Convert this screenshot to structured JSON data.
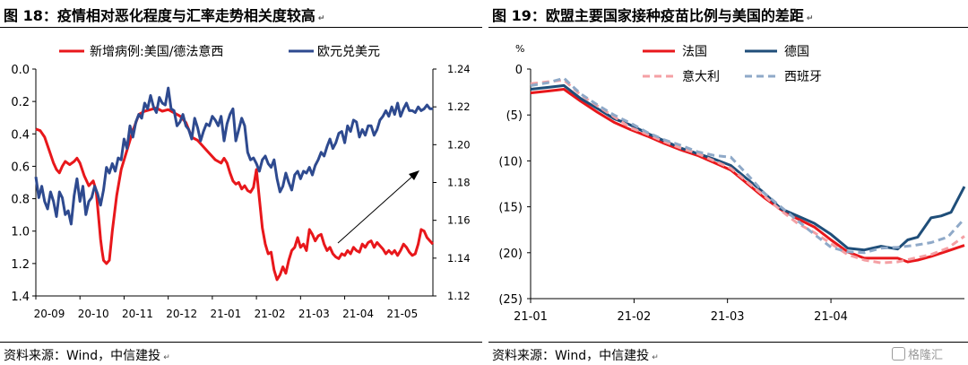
{
  "left_panel": {
    "title": "图 18：疫情相对恶化程度与汇率走势相关度较高",
    "source": "资料来源：Wind，中信建投"
  },
  "right_panel": {
    "title": "图 19：欧盟主要国家接种疫苗比例与美国的差距",
    "source": "资料来源：Wind，中信建投"
  },
  "colors": {
    "red": "#e8171b",
    "blue": "#2e4a8f",
    "darkblue": "#1f4e79",
    "pink": "#f4a0a4",
    "lightblue": "#8fa9c8"
  },
  "chart_data": [
    {
      "type": "line",
      "title": "图 18：疫情相对恶化程度与汇率走势相关度较高",
      "x_tick_labels": [
        "20-09",
        "20-10",
        "20-11",
        "20-12",
        "21-01",
        "21-02",
        "21-03",
        "21-04",
        "21-05"
      ],
      "y_left": {
        "ticks": [
          "0.0",
          "0.2",
          "0.4",
          "0.6",
          "0.8",
          "1.0",
          "1.2",
          "1.4"
        ],
        "range": [
          0.0,
          1.4
        ],
        "inverted": true
      },
      "y_right": {
        "ticks": [
          "1.12",
          "1.14",
          "1.16",
          "1.18",
          "1.20",
          "1.22",
          "1.24"
        ],
        "range": [
          1.12,
          1.24
        ]
      },
      "legend_placement": "top",
      "annotation": "upward arrow",
      "series": [
        {
          "name": "新增病例:美国/德法意西",
          "axis": "left",
          "color": "#e8171b",
          "x": [
            0,
            3,
            6,
            9,
            12,
            14,
            16,
            18,
            20,
            23,
            26,
            28,
            30,
            33,
            36,
            39,
            41,
            43,
            44,
            45,
            46,
            48,
            50,
            52,
            55,
            58,
            62,
            66,
            70,
            74,
            78,
            82,
            86,
            90,
            94,
            98,
            102,
            106,
            110,
            114,
            118,
            122,
            126,
            128,
            130,
            132,
            134,
            136,
            138,
            140,
            142,
            144,
            146,
            148,
            150,
            152,
            154,
            156,
            158,
            160,
            162,
            164,
            166,
            168,
            170,
            172,
            174,
            176,
            178,
            180,
            182,
            184,
            186,
            188,
            190,
            192,
            194,
            196,
            198,
            200,
            202,
            204,
            206,
            208,
            210,
            212,
            214,
            216,
            218,
            220,
            222,
            224,
            226,
            228,
            230,
            232,
            234,
            236,
            238,
            240,
            242,
            244,
            246,
            248,
            250,
            252,
            254,
            256,
            258,
            260,
            262,
            264,
            266,
            268,
            270
          ],
          "values": [
            0.37,
            0.38,
            0.42,
            0.5,
            0.58,
            0.62,
            0.64,
            0.6,
            0.57,
            0.59,
            0.57,
            0.55,
            0.58,
            0.66,
            0.72,
            0.69,
            0.75,
            0.95,
            1.05,
            1.12,
            1.18,
            1.2,
            1.18,
            1.0,
            0.78,
            0.62,
            0.5,
            0.38,
            0.28,
            0.26,
            0.25,
            0.24,
            0.26,
            0.25,
            0.27,
            0.29,
            0.33,
            0.42,
            0.44,
            0.48,
            0.52,
            0.56,
            0.58,
            0.55,
            0.58,
            0.64,
            0.69,
            0.71,
            0.7,
            0.74,
            0.72,
            0.75,
            0.76,
            0.73,
            0.62,
            0.8,
            0.98,
            1.08,
            1.14,
            1.13,
            1.24,
            1.3,
            1.27,
            1.22,
            1.26,
            1.18,
            1.12,
            1.1,
            1.04,
            1.1,
            1.08,
            1.12,
            0.99,
            1.02,
            1.06,
            1.03,
            1.02,
            1.08,
            1.12,
            1.1,
            1.14,
            1.16,
            1.17,
            1.14,
            1.15,
            1.12,
            1.14,
            1.1,
            1.12,
            1.13,
            1.08,
            1.1,
            1.07,
            1.06,
            1.1,
            1.07,
            1.09,
            1.11,
            1.14,
            1.12,
            1.14,
            1.12,
            1.15,
            1.12,
            1.08,
            1.1,
            1.13,
            1.15,
            1.14,
            1.08,
            0.99,
            1.0,
            1.04,
            1.06,
            1.08
          ]
        },
        {
          "name": "欧元兑美元",
          "axis": "right",
          "color": "#2e4a8f",
          "x": [
            0,
            2,
            4,
            6,
            8,
            10,
            12,
            14,
            16,
            18,
            20,
            22,
            24,
            26,
            28,
            30,
            32,
            34,
            36,
            38,
            40,
            42,
            44,
            46,
            48,
            50,
            52,
            54,
            56,
            58,
            60,
            62,
            64,
            66,
            68,
            70,
            72,
            74,
            76,
            78,
            80,
            82,
            84,
            86,
            88,
            90,
            92,
            94,
            96,
            98,
            100,
            102,
            104,
            106,
            108,
            110,
            112,
            114,
            116,
            118,
            120,
            122,
            124,
            126,
            128,
            130,
            132,
            134,
            136,
            138,
            140,
            142,
            144,
            146,
            148,
            150,
            152,
            154,
            156,
            158,
            160,
            162,
            164,
            166,
            168,
            170,
            172,
            174,
            176,
            178,
            180,
            182,
            184,
            186,
            188,
            190,
            192,
            194,
            196,
            198,
            200,
            202,
            204,
            206,
            208,
            210,
            212,
            214,
            216,
            218,
            220,
            222,
            224,
            226,
            228,
            230,
            232,
            234,
            236,
            238,
            240,
            242,
            244,
            246,
            248,
            250,
            252,
            254,
            256,
            258,
            260,
            262,
            264,
            266,
            268,
            270
          ],
          "values": [
            1.183,
            1.172,
            1.178,
            1.17,
            1.166,
            1.175,
            1.17,
            1.162,
            1.175,
            1.172,
            1.163,
            1.165,
            1.158,
            1.173,
            1.182,
            1.17,
            1.178,
            1.163,
            1.17,
            1.172,
            1.178,
            1.174,
            1.168,
            1.176,
            1.188,
            1.185,
            1.19,
            1.186,
            1.193,
            1.192,
            1.203,
            1.198,
            1.21,
            1.204,
            1.212,
            1.216,
            1.214,
            1.222,
            1.219,
            1.226,
            1.22,
            1.217,
            1.225,
            1.222,
            1.221,
            1.23,
            1.219,
            1.218,
            1.21,
            1.212,
            1.216,
            1.21,
            1.208,
            1.203,
            1.214,
            1.209,
            1.202,
            1.207,
            1.211,
            1.21,
            1.215,
            1.213,
            1.21,
            1.215,
            1.202,
            1.211,
            1.216,
            1.219,
            1.202,
            1.208,
            1.214,
            1.21,
            1.196,
            1.192,
            1.193,
            1.19,
            1.186,
            1.192,
            1.194,
            1.19,
            1.188,
            1.192,
            1.182,
            1.175,
            1.178,
            1.185,
            1.18,
            1.176,
            1.184,
            1.186,
            1.182,
            1.186,
            1.185,
            1.188,
            1.184,
            1.189,
            1.192,
            1.196,
            1.194,
            1.199,
            1.203,
            1.198,
            1.201,
            1.206,
            1.207,
            1.201,
            1.21,
            1.207,
            1.213,
            1.212,
            1.204,
            1.208,
            1.205,
            1.21,
            1.21,
            1.205,
            1.208,
            1.213,
            1.215,
            1.218,
            1.215,
            1.22,
            1.216,
            1.222,
            1.215,
            1.219,
            1.222,
            1.218,
            1.218,
            1.217,
            1.22,
            1.218,
            1.219,
            1.221,
            1.219,
            1.219
          ]
        }
      ]
    },
    {
      "type": "line",
      "title": "图 19：欧盟主要国家接种疫苗比例与美国的差距",
      "y_label": "%",
      "x_tick_labels": [
        "21-01",
        "21-02",
        "21-03",
        "21-04"
      ],
      "y_ticks": [
        "0",
        "(5)",
        "(10)",
        "(15)",
        "(20)",
        "(25)"
      ],
      "y_range": [
        -25,
        0
      ],
      "legend_placement": "top-center",
      "series": [
        {
          "name": "法国",
          "color": "#e8171b",
          "style": "solid",
          "x": [
            0,
            5,
            10,
            15,
            20,
            25,
            30,
            35,
            40,
            45,
            50,
            55,
            60,
            65,
            70,
            75,
            80,
            85,
            90,
            95,
            100,
            105,
            110,
            113,
            116,
            120,
            125,
            130
          ],
          "values": [
            -2.6,
            -2.4,
            -2.2,
            -3.5,
            -4.7,
            -5.8,
            -6.6,
            -7.3,
            -8.1,
            -8.8,
            -9.4,
            -10.2,
            -11.0,
            -12.5,
            -14.0,
            -15.3,
            -16.3,
            -17.2,
            -18.6,
            -19.9,
            -20.6,
            -20.6,
            -20.6,
            -21.0,
            -20.8,
            -20.4,
            -19.8,
            -19.2
          ]
        },
        {
          "name": "德国",
          "color": "#1f4e79",
          "style": "solid",
          "x": [
            0,
            5,
            10,
            15,
            20,
            25,
            30,
            35,
            40,
            45,
            50,
            55,
            60,
            65,
            70,
            75,
            80,
            85,
            90,
            95,
            100,
            105,
            110,
            113,
            116,
            120,
            123,
            126,
            130
          ],
          "values": [
            -2.2,
            -2.0,
            -1.8,
            -3.2,
            -4.3,
            -5.4,
            -6.1,
            -7.0,
            -7.8,
            -8.6,
            -9.2,
            -9.8,
            -10.5,
            -12.0,
            -13.5,
            -15.2,
            -16.0,
            -16.8,
            -18.0,
            -19.5,
            -19.7,
            -19.3,
            -19.6,
            -18.6,
            -18.3,
            -16.2,
            -16.0,
            -15.6,
            -12.8
          ]
        },
        {
          "name": "意大利",
          "color": "#f4a0a4",
          "style": "dashed",
          "x": [
            0,
            5,
            10,
            15,
            20,
            25,
            30,
            35,
            40,
            45,
            50,
            55,
            60,
            65,
            70,
            75,
            80,
            85,
            90,
            95,
            100,
            105,
            110,
            115,
            120,
            125,
            130
          ],
          "values": [
            -1.6,
            -1.4,
            -1.2,
            -2.8,
            -4.0,
            -5.2,
            -6.4,
            -7.1,
            -7.9,
            -8.6,
            -9.2,
            -10.0,
            -10.8,
            -12.3,
            -13.8,
            -15.4,
            -16.8,
            -17.8,
            -19.0,
            -20.2,
            -20.8,
            -21.1,
            -21.0,
            -20.6,
            -20.2,
            -19.5,
            -18.2
          ]
        },
        {
          "name": "西班牙",
          "color": "#8fa9c8",
          "style": "dashed",
          "x": [
            0,
            5,
            10,
            15,
            20,
            25,
            30,
            35,
            40,
            45,
            50,
            55,
            60,
            65,
            70,
            75,
            80,
            85,
            90,
            95,
            100,
            105,
            110,
            115,
            120,
            125,
            130
          ],
          "values": [
            -1.8,
            -1.5,
            -1.0,
            -2.7,
            -3.9,
            -5.0,
            -5.9,
            -6.9,
            -7.7,
            -8.3,
            -9.0,
            -9.4,
            -9.6,
            -11.5,
            -13.5,
            -15.0,
            -16.5,
            -18.0,
            -19.4,
            -19.9,
            -20.0,
            -19.5,
            -19.4,
            -19.2,
            -18.9,
            -18.3,
            -16.3
          ]
        }
      ]
    }
  ]
}
